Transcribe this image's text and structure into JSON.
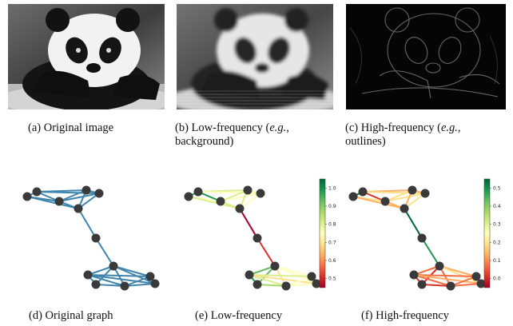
{
  "captions": {
    "a": "(a)  Original image",
    "b_main": "(b)   Low-frequency   (",
    "b_eg": "e.g.",
    "b_tail": ",",
    "b_line2": "background)",
    "c_main": "(c)   High-frequency   (",
    "c_eg": "e.g.",
    "c_tail": ",",
    "c_line2": "outlines)",
    "d": "(d)  Original graph",
    "e": "(e)  Low-frequency",
    "f": "(f)  High-frequency"
  },
  "images": [
    {
      "name": "original-image",
      "kind": "original"
    },
    {
      "name": "low-frequency-image",
      "kind": "blurred"
    },
    {
      "name": "high-frequency-image",
      "kind": "edges"
    }
  ],
  "colors": {
    "graph_edge": "#3f84ad",
    "node": "#3a3a3a",
    "cmap": [
      "#a50026",
      "#d73027",
      "#f46d43",
      "#fdae61",
      "#fee08b",
      "#ffffbf",
      "#d9ef8b",
      "#a6d96a",
      "#66bd63",
      "#1a9850",
      "#006837"
    ]
  },
  "colorbar_e": {
    "ticks": [
      "1.0",
      "0.9",
      "0.8",
      "0.7",
      "0.6",
      "0.5"
    ],
    "min": 0.45,
    "max": 1.05
  },
  "colorbar_f": {
    "ticks": [
      "0.5",
      "0.4",
      "0.3",
      "0.2",
      "0.1",
      "0.0"
    ],
    "min": -0.05,
    "max": 0.55
  }
}
